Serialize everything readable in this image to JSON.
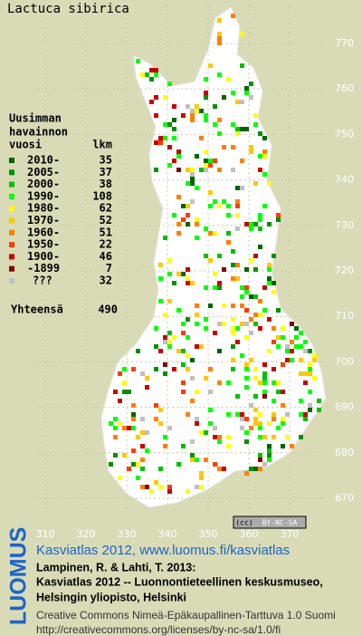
{
  "title": "Lactuca sibirica",
  "legend": {
    "heading": [
      "Uusimman",
      "havainnon"
    ],
    "col_year": "vuosi",
    "col_count": "lkm",
    "rows": [
      {
        "label": "2010-",
        "count": 35,
        "color": "#006400"
      },
      {
        "label": "2005-",
        "count": 37,
        "color": "#009000"
      },
      {
        "label": "2000-",
        "count": 38,
        "color": "#00c000"
      },
      {
        "label": "1990-",
        "count": 108,
        "color": "#00ff00"
      },
      {
        "label": "1980-",
        "count": 62,
        "color": "#ffff00"
      },
      {
        "label": "1970-",
        "count": 52,
        "color": "#ffc800"
      },
      {
        "label": "1960-",
        "count": 51,
        "color": "#ff8000"
      },
      {
        "label": "1950-",
        "count": 22,
        "color": "#ff3c00"
      },
      {
        "label": "1900-",
        "count": 46,
        "color": "#c80000"
      },
      {
        "label": "-1899",
        "count": 7,
        "color": "#800000"
      },
      {
        "label": "???",
        "count": 32,
        "color": "#c0c0c0"
      }
    ],
    "total_label": "Yhteensä",
    "total": 490
  },
  "grid": {
    "x_labels": [
      310,
      320,
      330,
      340,
      350,
      360,
      370
    ],
    "y_labels": [
      770,
      760,
      750,
      740,
      730,
      720,
      710,
      700,
      690,
      680,
      670
    ]
  },
  "badge": {
    "cc": "(cc)",
    "license": "BY-NC-SA"
  },
  "logo": "LUOMUS",
  "footer": {
    "site": "Kasviatlas 2012, www.luomus.fi/kasviatlas",
    "citation": [
      "Lampinen, R. & Lahti, T. 2013:",
      "Kasviatlas 2012 -- Luonnontieteellinen keskusmuseo,",
      "Helsingin yliopisto, Helsinki"
    ],
    "license": [
      "Creative Commons Nimeä-Epäkaupallinen-Tarttuva 1.0 Suomi",
      "http://creativecommons.org/licenses/by-nc-sa/1.0/fi"
    ]
  }
}
